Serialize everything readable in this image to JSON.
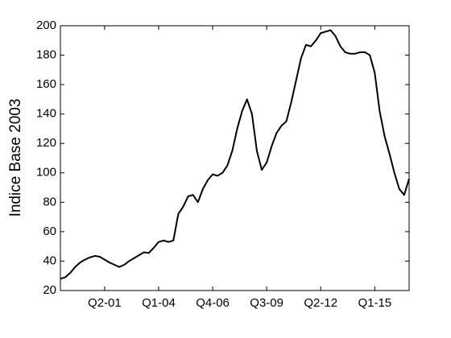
{
  "chart_data": {
    "type": "line",
    "y_label": "Indice Base 2003",
    "categories": [
      null,
      null,
      null,
      null,
      null,
      null,
      null,
      null,
      null,
      "Q2-01",
      null,
      null,
      null,
      null,
      null,
      null,
      null,
      null,
      null,
      null,
      "Q1-04",
      null,
      null,
      null,
      null,
      null,
      null,
      null,
      null,
      null,
      null,
      "Q4-06",
      null,
      null,
      null,
      null,
      null,
      null,
      null,
      null,
      null,
      null,
      "Q3-09",
      null,
      null,
      null,
      null,
      null,
      null,
      null,
      null,
      null,
      null,
      "Q2-12",
      null,
      null,
      null,
      null,
      null,
      null,
      null,
      null,
      null,
      null,
      "Q1-15",
      null,
      null,
      null,
      null,
      null,
      null,
      null
    ],
    "series": [
      {
        "name": null,
        "color": "#000000",
        "values": [
          28,
          29,
          32,
          36,
          39,
          41,
          42.5,
          43.5,
          43,
          41,
          39,
          37.5,
          36,
          37.5,
          40,
          42,
          44,
          46,
          45.5,
          49,
          53,
          54,
          53,
          54,
          72,
          77,
          84,
          85,
          80,
          89,
          95,
          99,
          98,
          100,
          105,
          115,
          130,
          142,
          150,
          140,
          115,
          102,
          107,
          118,
          127,
          132,
          135,
          148,
          163,
          178,
          187,
          186,
          190,
          195,
          196,
          197,
          193,
          186,
          182,
          181,
          181,
          182,
          182,
          180,
          168,
          142,
          125,
          113,
          100,
          89,
          85,
          96
        ]
      }
    ],
    "ylim": [
      20,
      200
    ],
    "yticks": [
      20,
      40,
      60,
      80,
      100,
      120,
      140,
      160,
      180,
      200
    ],
    "grid": false
  }
}
